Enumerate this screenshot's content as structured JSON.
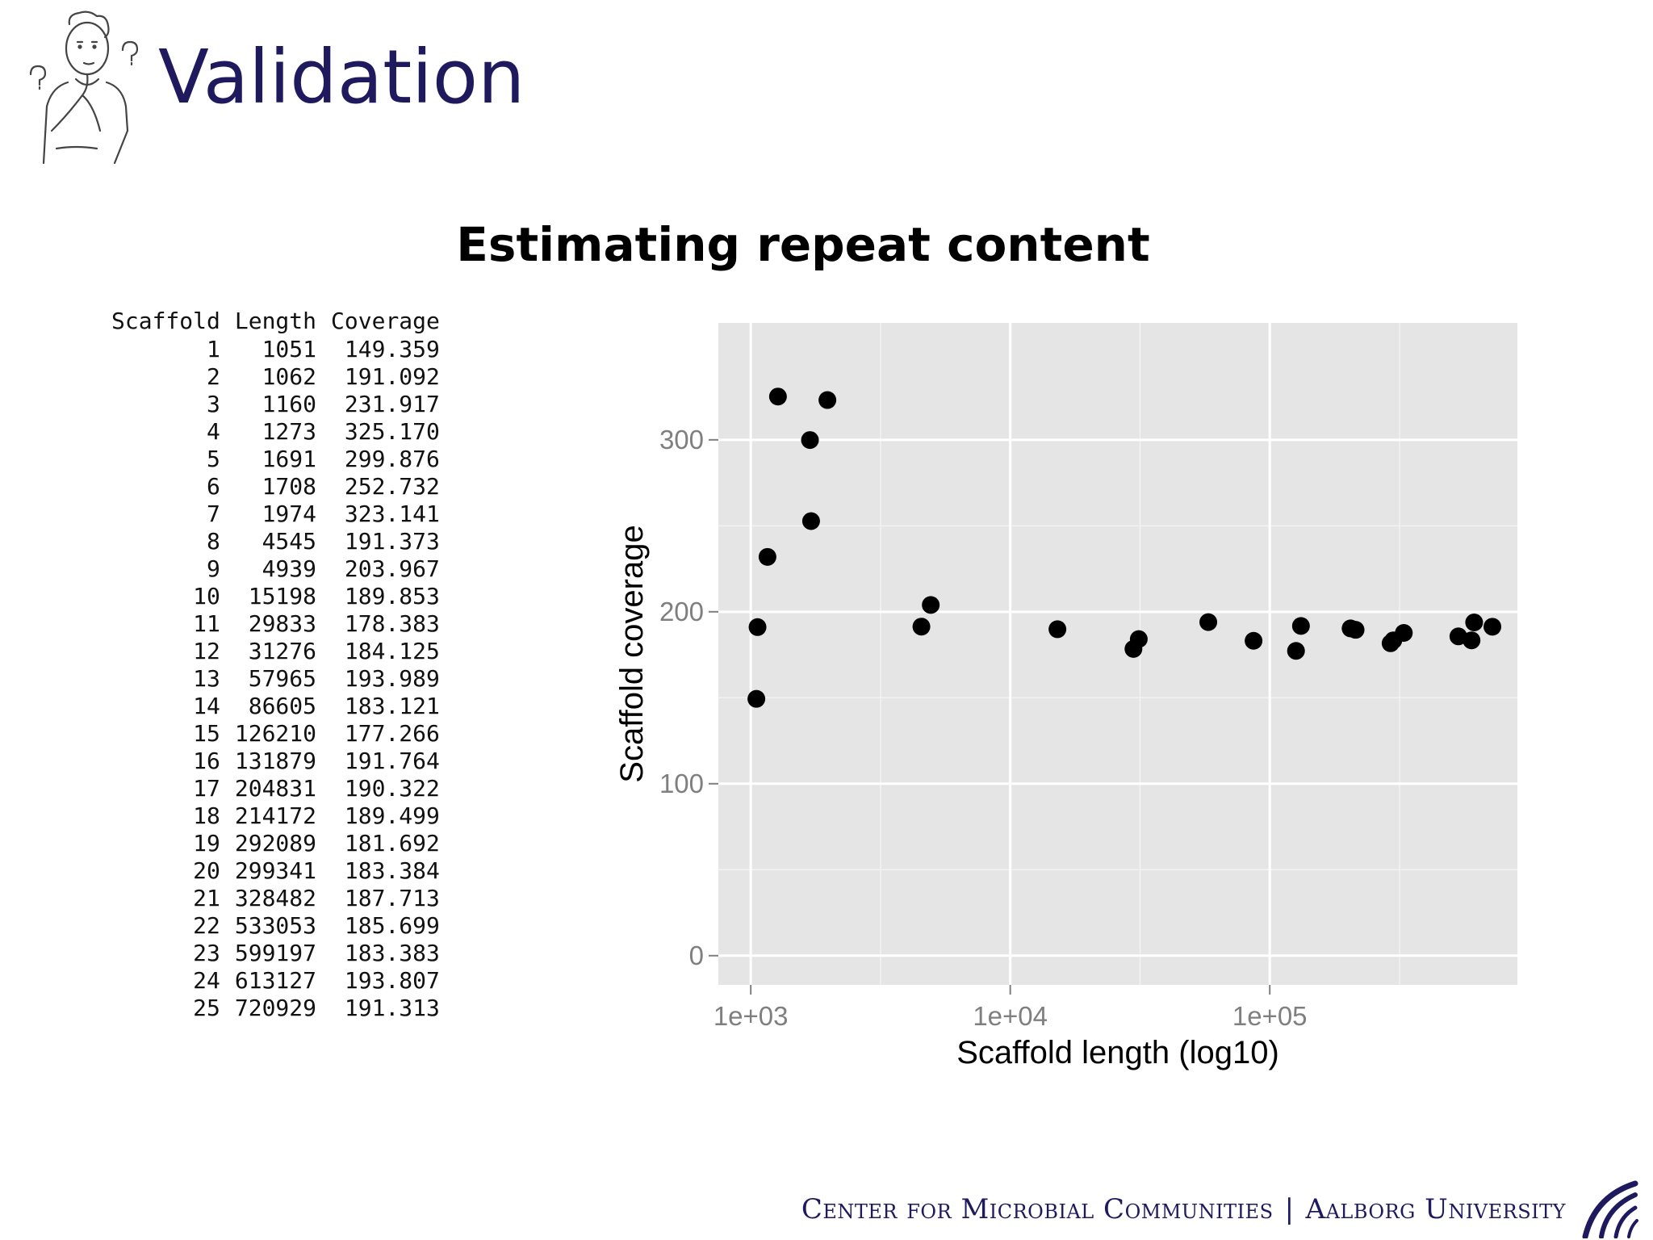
{
  "header": {
    "title": "Validation",
    "icon": "thinking-person-icon"
  },
  "chart_title": "Estimating repeat content",
  "table": {
    "columns": [
      "Scaffold",
      "Length",
      "Coverage"
    ],
    "rows": [
      [
        "1",
        "1051",
        "149.359"
      ],
      [
        "2",
        "1062",
        "191.092"
      ],
      [
        "3",
        "1160",
        "231.917"
      ],
      [
        "4",
        "1273",
        "325.170"
      ],
      [
        "5",
        "1691",
        "299.876"
      ],
      [
        "6",
        "1708",
        "252.732"
      ],
      [
        "7",
        "1974",
        "323.141"
      ],
      [
        "8",
        "4545",
        "191.373"
      ],
      [
        "9",
        "4939",
        "203.967"
      ],
      [
        "10",
        "15198",
        "189.853"
      ],
      [
        "11",
        "29833",
        "178.383"
      ],
      [
        "12",
        "31276",
        "184.125"
      ],
      [
        "13",
        "57965",
        "193.989"
      ],
      [
        "14",
        "86605",
        "183.121"
      ],
      [
        "15",
        "126210",
        "177.266"
      ],
      [
        "16",
        "131879",
        "191.764"
      ],
      [
        "17",
        "204831",
        "190.322"
      ],
      [
        "18",
        "214172",
        "189.499"
      ],
      [
        "19",
        "292089",
        "181.692"
      ],
      [
        "20",
        "299341",
        "183.384"
      ],
      [
        "21",
        "328482",
        "187.713"
      ],
      [
        "22",
        "533053",
        "185.699"
      ],
      [
        "23",
        "599197",
        "183.383"
      ],
      [
        "24",
        "613127",
        "193.807"
      ],
      [
        "25",
        "720929",
        "191.313"
      ]
    ]
  },
  "chart_data": {
    "type": "scatter",
    "xlabel": "Scaffold length (log10)",
    "ylabel": "Scaffold coverage",
    "x_scale": "log10",
    "x_ticks": [
      1000,
      10000,
      100000
    ],
    "x_tick_labels": [
      "1e+03",
      "1e+04",
      "1e+05"
    ],
    "y_ticks": [
      0,
      100,
      200,
      300
    ],
    "y_tick_labels": [
      "0",
      "100",
      "200",
      "300"
    ],
    "xlim": [
      750,
      900000
    ],
    "ylim": [
      -17,
      368
    ],
    "grid": true,
    "background": "#e5e5e5",
    "point_color": "#000000",
    "x": [
      1051,
      1062,
      1160,
      1273,
      1691,
      1708,
      1974,
      4545,
      4939,
      15198,
      29833,
      31276,
      57965,
      86605,
      126210,
      131879,
      204831,
      214172,
      292089,
      299341,
      328482,
      533053,
      599197,
      613127,
      720929
    ],
    "y": [
      149.359,
      191.092,
      231.917,
      325.17,
      299.876,
      252.732,
      323.141,
      191.373,
      203.967,
      189.853,
      178.383,
      184.125,
      193.989,
      183.121,
      177.266,
      191.764,
      190.322,
      189.499,
      181.692,
      183.384,
      187.713,
      185.699,
      183.383,
      193.807,
      191.313
    ]
  },
  "footer": {
    "left": "Center for Microbial Communities",
    "separator": "|",
    "right": "Aalborg University",
    "logo": "aalborg-university-logo"
  },
  "colors": {
    "title": "#1f1a5e",
    "footer": "#1f1a5e",
    "panel": "#e5e5e5",
    "grid": "#ffffff",
    "tick_text": "#7f7f7f"
  }
}
